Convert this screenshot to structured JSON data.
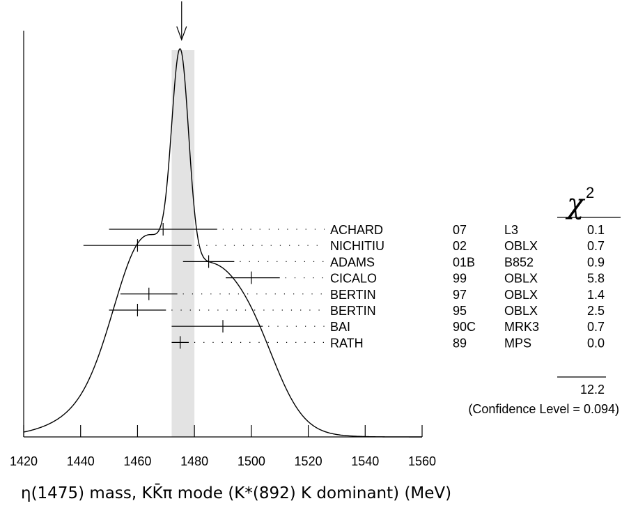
{
  "chart_data": {
    "type": "ideogram",
    "xlabel": "η(1475) mass, KK̄π mode (K*(892) K dominant) (MeV)",
    "x_ticks": [
      1420,
      1440,
      1460,
      1480,
      1500,
      1520,
      1540,
      1560
    ],
    "xlim": [
      1420,
      1560
    ],
    "average": {
      "value": 1475.5,
      "band": [
        1472,
        1480
      ]
    },
    "chi2_symbol": "χ",
    "chi2_exponent": "2",
    "chi2_total": "12.2",
    "confidence_level": "(Confidence Level = 0.094)",
    "measurements": [
      {
        "author": "ACHARD",
        "year": "07",
        "exp": "L3",
        "value": 1469,
        "low": 1450,
        "high": 1488,
        "chi2": "0.1"
      },
      {
        "author": "NICHITIU",
        "year": "02",
        "exp": "OBLX",
        "value": 1460,
        "low": 1441,
        "high": 1479,
        "chi2": "0.7"
      },
      {
        "author": "ADAMS",
        "year": "01B",
        "exp": "B852",
        "value": 1485,
        "low": 1476,
        "high": 1494,
        "chi2": "0.9"
      },
      {
        "author": "CICALO",
        "year": "99",
        "exp": "OBLX",
        "value": 1500,
        "low": 1491,
        "high": 1510,
        "chi2": "5.8"
      },
      {
        "author": "BERTIN",
        "year": "97",
        "exp": "OBLX",
        "value": 1464,
        "low": 1454,
        "high": 1474,
        "chi2": "1.4"
      },
      {
        "author": "BERTIN",
        "year": "95",
        "exp": "OBLX",
        "value": 1460,
        "low": 1450,
        "high": 1470,
        "chi2": "2.5"
      },
      {
        "author": "BAI",
        "year": "90C",
        "exp": "MRK3",
        "value": 1490,
        "low": 1472,
        "high": 1504,
        "chi2": "0.7"
      },
      {
        "author": "RATH",
        "year": "89",
        "exp": "MPS",
        "value": 1475,
        "low": 1472,
        "high": 1478,
        "chi2": "0.0"
      }
    ]
  }
}
